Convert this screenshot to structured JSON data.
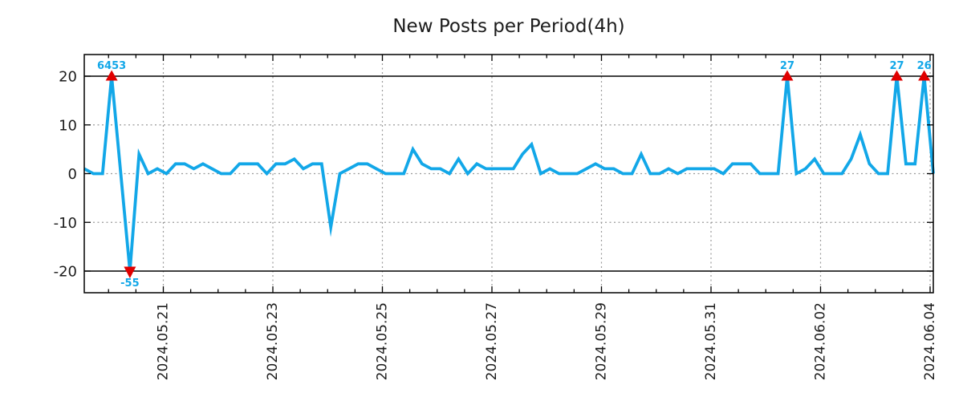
{
  "page": {
    "background": "#ffffff"
  },
  "chart": {
    "colors": {
      "line": "#12a7e8",
      "clip_marker": "#e00000",
      "grid_dashed": "#9a9a9a",
      "axis": "#000000",
      "text": "#1c1c1c",
      "clip_label": "#12a7e8"
    }
  },
  "chart_data": {
    "type": "line",
    "title": "New Posts per Period(4h)",
    "series_name": "new posts",
    "period": "4h",
    "xlabel": "",
    "ylabel": "",
    "x_tick_labels": [
      "2024.05.21",
      "2024.05.23",
      "2024.05.25",
      "2024.05.27",
      "2024.05.29",
      "2024.05.31",
      "2024.06.02",
      "2024.06.04"
    ],
    "y_ticks": [
      -20,
      -10,
      0,
      10,
      20
    ],
    "y_tick_labels": [
      "-20",
      "-10",
      "0",
      "10",
      "20"
    ],
    "ylim": [
      -24.4,
      24.4
    ],
    "clip_at": 20,
    "grid": true,
    "legend_position": "none",
    "values": [
      1,
      0,
      0,
      6453,
      0,
      -55,
      4,
      0,
      1,
      0,
      2,
      2,
      1,
      2,
      1,
      0,
      0,
      2,
      2,
      2,
      0,
      2,
      2,
      3,
      1,
      2,
      2,
      -11,
      0,
      1,
      2,
      2,
      1,
      0,
      0,
      0,
      5,
      2,
      1,
      1,
      0,
      3,
      0,
      2,
      1,
      1,
      1,
      1,
      4,
      6,
      0,
      1,
      0,
      0,
      0,
      1,
      2,
      1,
      1,
      0,
      0,
      4,
      0,
      0,
      1,
      0,
      1,
      1,
      1,
      1,
      0,
      2,
      2,
      2,
      0,
      0,
      0,
      27,
      0,
      1,
      3,
      0,
      0,
      0,
      3,
      8,
      2,
      0,
      0,
      27,
      2,
      2,
      26,
      0
    ],
    "clipped_points": [
      {
        "index": 3,
        "value": 6453,
        "label": "6453",
        "direction": "up"
      },
      {
        "index": 5,
        "value": -55,
        "label": "-55",
        "direction": "down"
      },
      {
        "index": 77,
        "value": 27,
        "label": "27",
        "direction": "up"
      },
      {
        "index": 89,
        "value": 27,
        "label": "27",
        "direction": "up"
      },
      {
        "index": 92,
        "value": 26,
        "label": "26",
        "direction": "up"
      }
    ]
  }
}
